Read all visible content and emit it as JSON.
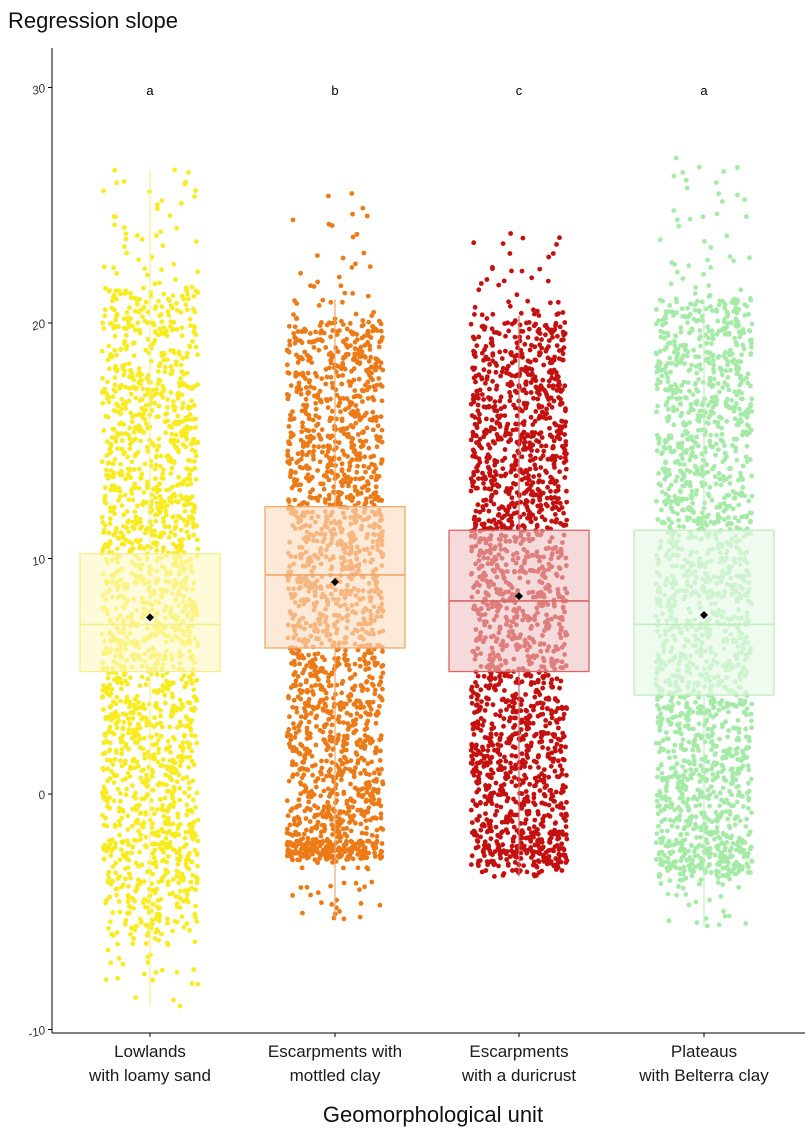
{
  "chart_data": {
    "type": "box",
    "ylabel": "Regression slope",
    "xlabel": "Geomorphological unit",
    "ylim": [
      -10,
      32
    ],
    "yticks": [
      "30",
      "20",
      "10",
      "0",
      "-10"
    ],
    "ytick_values": [
      30,
      20,
      10,
      0,
      -10
    ],
    "grid": false,
    "categories": [
      "Lowlands\nwith loamy sand",
      "Escarpments with\nmottled clay",
      "Escarpments\nwith a duricrust",
      "Plateaus\nwith Belterra clay"
    ],
    "significance_letters": [
      "a",
      "b",
      "c",
      "a"
    ],
    "series": [
      {
        "color": "#f8ec20",
        "box_fill": "#fdf9c4",
        "box_line": "#f6ee88",
        "whisker_low": -9.0,
        "q1": 5.2,
        "median": 7.2,
        "q3": 10.2,
        "whisker_high": 26.5,
        "mean": 7.5,
        "min": -9.0,
        "max": 26.5,
        "density_low": -6.0,
        "density_high": 21.5,
        "dense_low": -2.5,
        "dense_high": 17.5,
        "jitter_halfwidth": 0.24
      },
      {
        "color": "#ec7a16",
        "box_fill": "#fbdcc0",
        "box_line": "#f0a766",
        "whisker_low": -5.3,
        "q1": 6.2,
        "median": 9.3,
        "q3": 12.2,
        "whisker_high": 21.0,
        "mean": 9.0,
        "min": -5.3,
        "max": 25.5,
        "density_low": -2.8,
        "density_high": 20.0,
        "dense_low": -2.0,
        "dense_high": 17.0,
        "jitter_halfwidth": 0.24
      },
      {
        "color": "#c4100f",
        "box_fill": "#eec3c4",
        "box_line": "#d96565",
        "whisker_low": -3.5,
        "q1": 5.2,
        "median": 8.2,
        "q3": 11.2,
        "whisker_high": 20.3,
        "mean": 8.4,
        "min": -3.5,
        "max": 23.8,
        "density_low": -3.0,
        "density_high": 20.0,
        "dense_low": -1.5,
        "dense_high": 17.0,
        "jitter_halfwidth": 0.24
      },
      {
        "color": "#a6eaa8",
        "box_fill": "#e7f9e7",
        "box_line": "#bdeebd",
        "whisker_low": -5.6,
        "q1": 4.2,
        "median": 7.2,
        "q3": 11.2,
        "whisker_high": 21.0,
        "mean": 7.6,
        "min": -5.6,
        "max": 27.0,
        "density_low": -3.5,
        "density_high": 21.0,
        "dense_low": -2.0,
        "dense_high": 18.0,
        "jitter_halfwidth": 0.24
      }
    ]
  }
}
